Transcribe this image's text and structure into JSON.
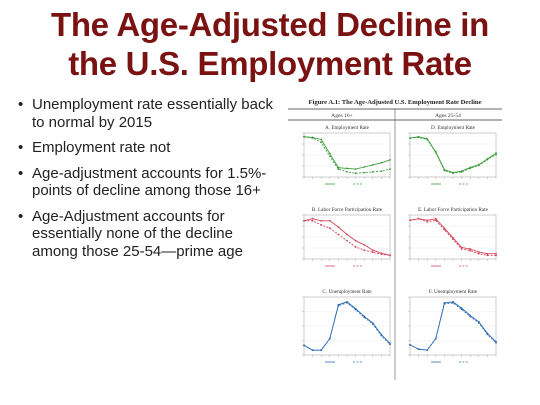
{
  "slide": {
    "title_line1": "The Age-Adjusted Decline in",
    "title_line2": "the U.S. Employment Rate",
    "bullets": [
      "Unemployment rate essentially back to normal by 2015",
      "Employment rate not",
      "Age-adjustment accounts for 1.5%-points of decline among those 16+",
      "Age-Adjustment accounts for essentially none of the decline among those 25-54—prime age"
    ]
  },
  "figure": {
    "title": "Figure A.1: The Age-Adjusted U.S. Employment Rate Decline",
    "col_headers": [
      "Ages 16+",
      "Ages 25-54"
    ],
    "colors": {
      "employment": "#3a9d3a",
      "participation": "#d6455a",
      "unemployment": "#2f6db3"
    }
  },
  "chart_data": [
    {
      "type": "line",
      "title": "A. Employment Rate",
      "color": "employment",
      "dashed_series": 1,
      "series": [
        {
          "values": [
            63.0,
            62.9,
            62.6,
            60.6,
            58.6,
            58.5,
            58.4,
            58.7,
            59.0,
            59.3,
            59.7
          ]
        },
        {
          "values": [
            63.0,
            62.8,
            62.2,
            60.2,
            58.4,
            58.0,
            57.8,
            57.9,
            58.0,
            58.1,
            58.4
          ]
        }
      ]
    },
    {
      "type": "line",
      "title": "D. Employment Rate",
      "color": "employment",
      "dashed_series": 1,
      "series": [
        {
          "values": [
            79.5,
            79.7,
            79.4,
            77.6,
            75.1,
            74.7,
            74.9,
            75.4,
            75.8,
            76.6,
            77.4
          ]
        },
        {
          "values": [
            79.5,
            79.6,
            79.3,
            77.5,
            75.0,
            74.6,
            74.8,
            75.3,
            75.7,
            76.5,
            77.2
          ]
        }
      ]
    },
    {
      "type": "line",
      "title": "B. Labor Force Participation Rate",
      "color": "participation",
      "dashed_series": 1,
      "series": [
        {
          "values": [
            66.0,
            66.2,
            66.0,
            66.0,
            65.4,
            64.7,
            64.1,
            63.7,
            63.2,
            62.9,
            62.7
          ]
        },
        {
          "values": [
            66.0,
            66.0,
            65.6,
            65.3,
            64.7,
            64.1,
            63.5,
            63.2,
            63.0,
            62.8,
            62.7
          ]
        }
      ]
    },
    {
      "type": "line",
      "title": "E. Labor Force Participation Rate",
      "color": "participation",
      "dashed_series": 1,
      "series": [
        {
          "values": [
            83.0,
            83.1,
            83.0,
            83.1,
            82.5,
            81.9,
            81.3,
            81.2,
            81.0,
            80.9,
            80.9
          ]
        },
        {
          "values": [
            83.0,
            83.1,
            82.9,
            83.0,
            82.4,
            81.8,
            81.2,
            81.1,
            80.9,
            80.8,
            80.8
          ]
        }
      ]
    },
    {
      "type": "line",
      "title": "C. Unemployment Rate",
      "color": "unemployment",
      "dashed_series": 1,
      "series": [
        {
          "values": [
            5.1,
            4.6,
            4.6,
            5.8,
            9.3,
            9.6,
            8.9,
            8.1,
            7.4,
            6.2,
            5.3
          ]
        },
        {
          "values": [
            5.1,
            4.6,
            4.6,
            5.8,
            9.2,
            9.5,
            8.8,
            8.0,
            7.3,
            6.1,
            5.2
          ]
        }
      ]
    },
    {
      "type": "line",
      "title": "F. Unemployment Rate",
      "color": "unemployment",
      "dashed_series": 1,
      "series": [
        {
          "values": [
            4.4,
            4.0,
            3.9,
            5.0,
            8.4,
            8.5,
            7.9,
            7.2,
            6.6,
            5.5,
            4.7
          ]
        },
        {
          "values": [
            4.4,
            4.0,
            3.9,
            5.0,
            8.3,
            8.4,
            7.8,
            7.1,
            6.5,
            5.4,
            4.6
          ]
        }
      ]
    }
  ]
}
